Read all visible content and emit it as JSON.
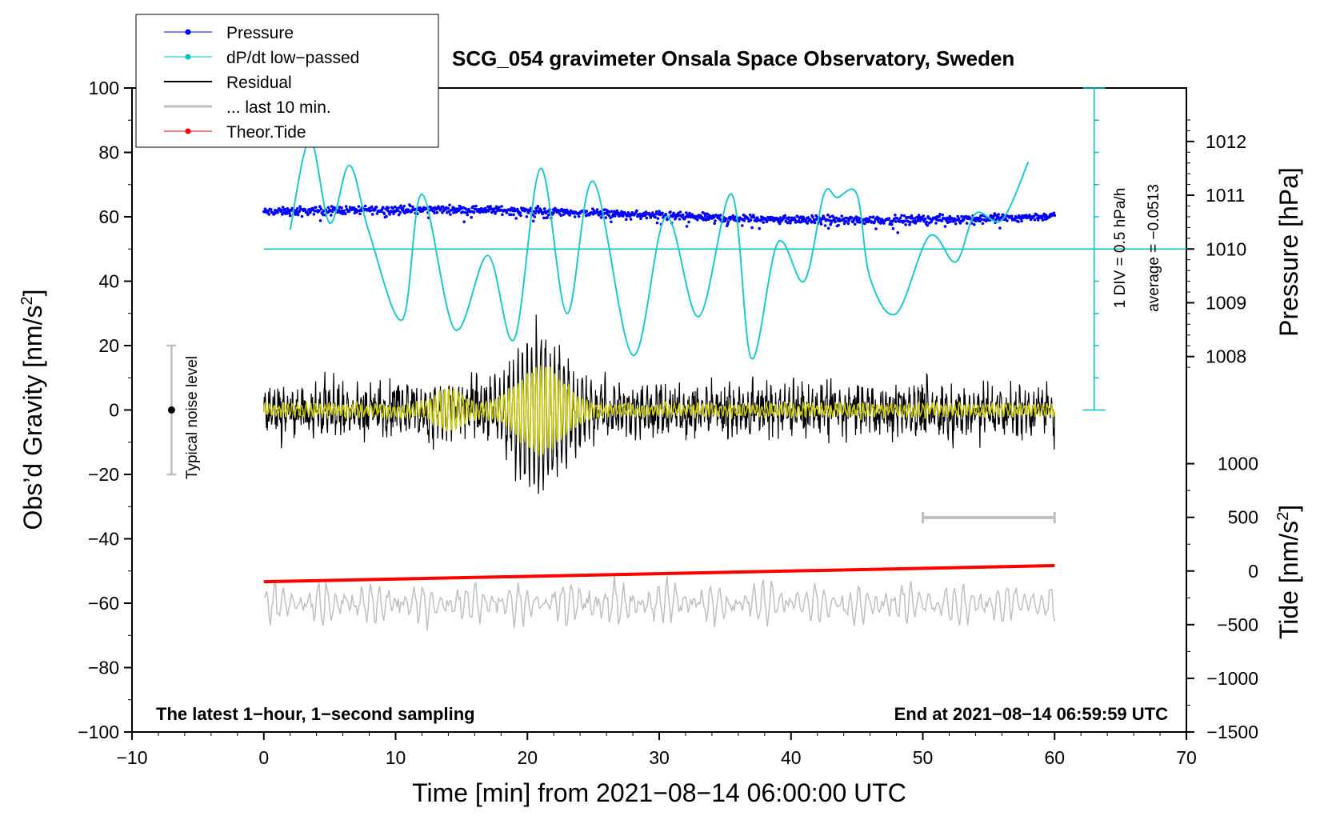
{
  "chart_data": {
    "type": "line",
    "title": "SCG_054 gravimeter Onsala Space Observatory, Sweden",
    "xlabel": "Time [min] from 2021−08−14 06:00:00 UTC",
    "ylabel_left_main": "Obs’d Gravity [nm/s",
    "ylabel_left_sup": "2",
    "ylabel_left_end": "]",
    "ylabel_right_pressure": "Pressure [hPa]",
    "ylabel_right_tide_main": "Tide [nm/s",
    "ylabel_right_tide_sup": "2",
    "ylabel_right_tide_end": "]",
    "xlim": [
      -10,
      70
    ],
    "ylim": [
      -100,
      100
    ],
    "x_ticks": [
      "−10",
      "0",
      "10",
      "20",
      "30",
      "40",
      "50",
      "60",
      "70"
    ],
    "x_tick_values": [
      -10,
      0,
      10,
      20,
      30,
      40,
      50,
      60,
      70
    ],
    "y_ticks": [
      "100",
      "80",
      "60",
      "40",
      "20",
      "0",
      "−20",
      "−40",
      "−60",
      "−80",
      "−100"
    ],
    "y_tick_values": [
      100,
      80,
      60,
      40,
      20,
      0,
      -20,
      -40,
      -60,
      -80,
      -100
    ],
    "pressure_ticks": [
      "1012",
      "1011",
      "1010",
      "1009",
      "1008"
    ],
    "pressure_tick_values": [
      1012,
      1011,
      1010,
      1009,
      1008
    ],
    "pressure_axis": {
      "g_at_1010": 50,
      "g_per_hPa": 16.7
    },
    "tide_ticks": [
      "1000",
      "500",
      "0",
      "−500",
      "−1000",
      "−1500"
    ],
    "tide_tick_values": [
      1000,
      500,
      0,
      -500,
      -1000,
      -1500
    ],
    "tide_axis": {
      "g_at_0": -50,
      "g_per_nms2": 0.03333
    },
    "series": [
      {
        "name": "Pressure",
        "color": "#0000ff",
        "marker": "dot",
        "x_range": [
          0,
          60
        ],
        "approx_hPa_start": 1010.9,
        "approx_hPa_end": 1010.7
      },
      {
        "name": "dP/dt low−passed",
        "color": "#00c0c0",
        "marker": "dot",
        "x": [
          2,
          3.5,
          5,
          6.5,
          8,
          10.5,
          12,
          14.5,
          17,
          19,
          21,
          23,
          25,
          28,
          30.5,
          33,
          35.5,
          37,
          39,
          41,
          42.5,
          43.5,
          45,
          46,
          48,
          50.5,
          52.5,
          54,
          56,
          58
        ],
        "y": [
          56,
          84,
          58,
          76,
          55,
          28,
          67,
          25,
          48,
          22,
          75,
          30,
          71,
          17,
          60,
          29,
          67,
          16,
          52,
          40,
          67,
          66,
          67,
          41,
          30,
          54,
          46,
          61,
          59,
          77
        ]
      },
      {
        "name": "Residual",
        "color": "#000000",
        "marker": "line",
        "x_range": [
          0,
          60
        ],
        "typical_range": [
          -10,
          10
        ],
        "peak_range": [
          -28,
          29
        ],
        "peak_x": 21
      },
      {
        "name": "... last 10 min.",
        "color": "#c0c0c0",
        "marker": "line",
        "x_range": [
          50,
          60
        ],
        "y_level": -60
      },
      {
        "name": "Theor.Tide",
        "color": "#ff0000",
        "marker": "dot",
        "x": [
          0,
          60
        ],
        "tide_values": [
          -100,
          50
        ]
      }
    ],
    "dpdt_reference": {
      "average_level_pressure": 1010,
      "bar_top": 100,
      "bar_bottom": 0,
      "x": 63
    },
    "noise_bar": {
      "label": "Typical noise level",
      "x": -7,
      "ylim": [
        -20,
        20
      ]
    },
    "annotations": {
      "dpdt_scale": "1 DIV = 0.5 hPa/h",
      "average": "average = −0.0513",
      "bottom_left": "The latest 1−hour, 1−second sampling",
      "bottom_right": "End at 2021−08−14 06:59:59 UTC"
    },
    "legend": [
      "Pressure",
      "dP/dt low−passed",
      "Residual",
      "... last 10 min.",
      "Theor.Tide"
    ]
  }
}
